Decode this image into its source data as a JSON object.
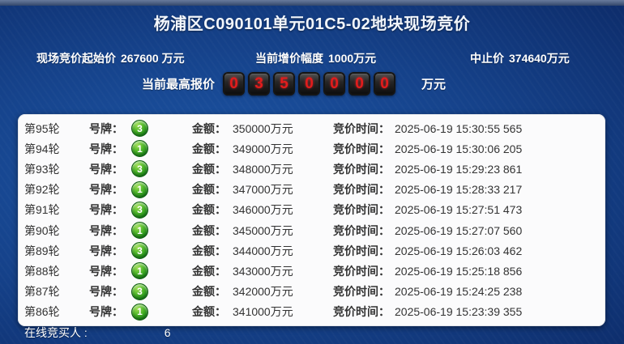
{
  "header": {
    "title": "杨浦区C090101单元01C5-02地块现场竞价"
  },
  "info": {
    "start_price_label": "现场竞价起始价",
    "start_price_value": "267600 万元",
    "increment_label": "当前增价幅度",
    "increment_value": "1000万元",
    "stop_price_label": "中止价",
    "stop_price_value": "374640万元"
  },
  "current_bid": {
    "label": "当前最高报价",
    "digits": [
      "0",
      "3",
      "5",
      "0",
      "0",
      "0",
      "0"
    ],
    "unit": "万元"
  },
  "table": {
    "labels": {
      "plate_label": "号牌：",
      "amount_label": "金额：",
      "time_label": "竞价时间："
    },
    "rows": [
      {
        "round": "第95轮",
        "plate": "3",
        "amount": "350000万元",
        "time": "2025-06-19 15:30:55 565"
      },
      {
        "round": "第94轮",
        "plate": "1",
        "amount": "349000万元",
        "time": "2025-06-19 15:30:06 205"
      },
      {
        "round": "第93轮",
        "plate": "3",
        "amount": "348000万元",
        "time": "2025-06-19 15:29:23 861"
      },
      {
        "round": "第92轮",
        "plate": "1",
        "amount": "347000万元",
        "time": "2025-06-19 15:28:33 217"
      },
      {
        "round": "第91轮",
        "plate": "3",
        "amount": "346000万元",
        "time": "2025-06-19 15:27:51 473"
      },
      {
        "round": "第90轮",
        "plate": "1",
        "amount": "345000万元",
        "time": "2025-06-19 15:27:07 560"
      },
      {
        "round": "第89轮",
        "plate": "3",
        "amount": "344000万元",
        "time": "2025-06-19 15:26:03 462"
      },
      {
        "round": "第88轮",
        "plate": "1",
        "amount": "343000万元",
        "time": "2025-06-19 15:25:18 856"
      },
      {
        "round": "第87轮",
        "plate": "3",
        "amount": "342000万元",
        "time": "2025-06-19 15:24:25 238"
      },
      {
        "round": "第86轮",
        "plate": "1",
        "amount": "341000万元",
        "time": "2025-06-19 15:23:39 355"
      }
    ]
  },
  "footer": {
    "online_bidders_label": "在线竞买人 :",
    "online_bidders_count": "6"
  },
  "colors": {
    "background_blue": "#12418a",
    "dark_navy": "#081d4e",
    "digit_red": "#e31c1c",
    "badge_green": "#1c8a1a",
    "panel_white": "#fbfbfc"
  }
}
